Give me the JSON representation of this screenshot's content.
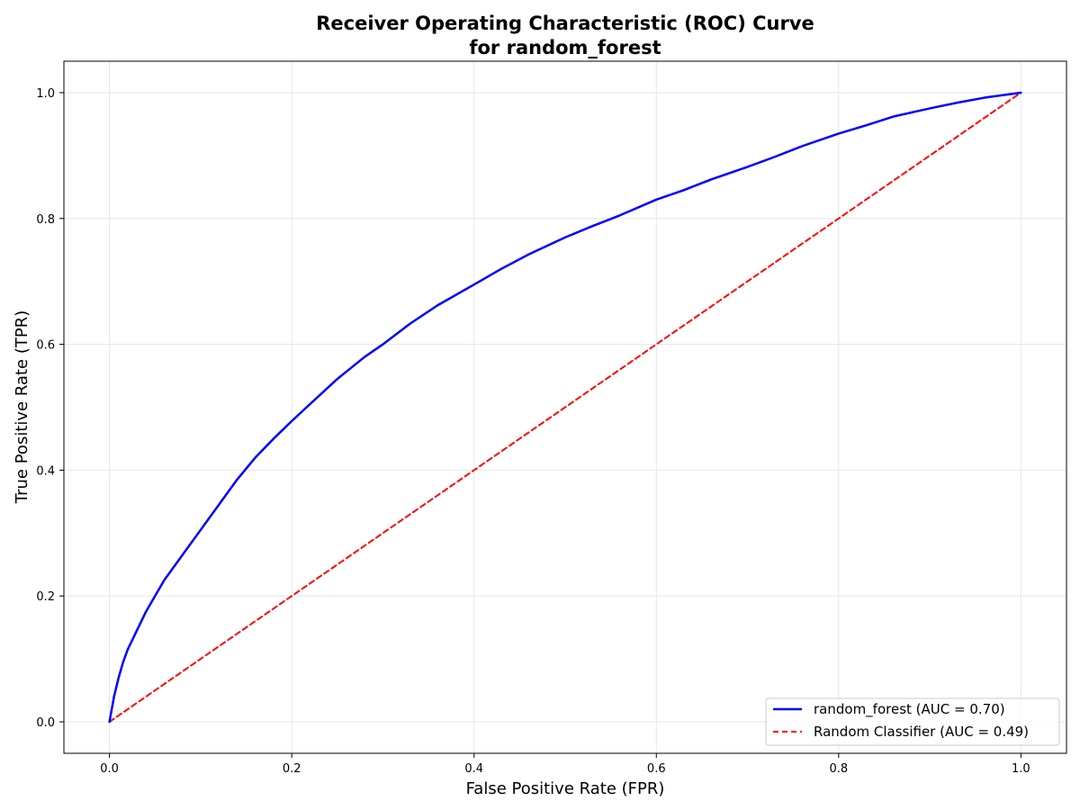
{
  "chart_data": {
    "type": "line",
    "title": "Receiver Operating Characteristic (ROC) Curve",
    "subtitle": "for random_forest",
    "xlabel": "False Positive Rate (FPR)",
    "ylabel": "True Positive Rate (TPR)",
    "xlim": [
      -0.05,
      1.05
    ],
    "ylim": [
      -0.05,
      1.05
    ],
    "xticks": [
      "0.0",
      "0.2",
      "0.4",
      "0.6",
      "0.8",
      "1.0"
    ],
    "yticks": [
      "0.0",
      "0.2",
      "0.4",
      "0.6",
      "0.8",
      "1.0"
    ],
    "grid": true,
    "legend_position": "bottom-right",
    "series": [
      {
        "name": "random_forest (AUC = 0.70)",
        "color": "#0000ff",
        "style": "solid",
        "x": [
          0.0,
          0.005,
          0.01,
          0.015,
          0.02,
          0.03,
          0.04,
          0.05,
          0.06,
          0.08,
          0.1,
          0.12,
          0.14,
          0.16,
          0.18,
          0.2,
          0.22,
          0.25,
          0.28,
          0.3,
          0.33,
          0.36,
          0.4,
          0.43,
          0.46,
          0.5,
          0.53,
          0.56,
          0.6,
          0.63,
          0.66,
          0.7,
          0.73,
          0.76,
          0.8,
          0.83,
          0.86,
          0.9,
          0.93,
          0.96,
          1.0
        ],
        "y": [
          0.0,
          0.04,
          0.07,
          0.095,
          0.115,
          0.145,
          0.175,
          0.2,
          0.225,
          0.265,
          0.305,
          0.345,
          0.385,
          0.42,
          0.45,
          0.478,
          0.505,
          0.545,
          0.58,
          0.6,
          0.633,
          0.662,
          0.695,
          0.72,
          0.743,
          0.77,
          0.788,
          0.805,
          0.83,
          0.845,
          0.862,
          0.882,
          0.898,
          0.915,
          0.935,
          0.948,
          0.962,
          0.975,
          0.984,
          0.992,
          1.0
        ]
      },
      {
        "name": "Random Classifier (AUC = 0.49)",
        "color": "#ff0000",
        "style": "dashed",
        "x": [
          0.0,
          1.0
        ],
        "y": [
          0.0,
          1.0
        ]
      }
    ]
  }
}
